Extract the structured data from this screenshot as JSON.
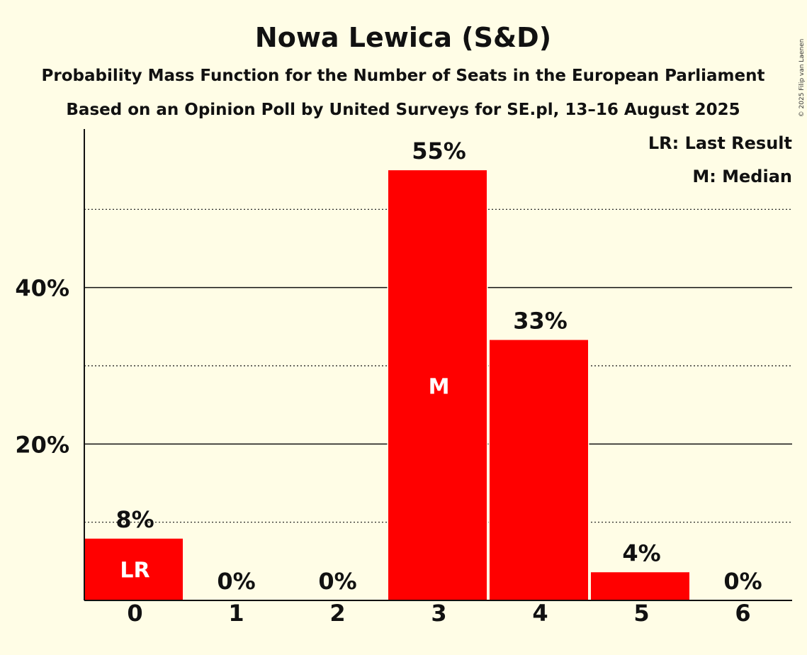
{
  "chart_data": {
    "type": "bar",
    "title": "Nowa Lewica (S&D)",
    "subtitle": "Probability Mass Function for the Number of Seats in the European Parliament",
    "subtitle2": "Based on an Opinion Poll by United Surveys for SE.pl, 13–16 August 2025",
    "categories": [
      "0",
      "1",
      "2",
      "3",
      "4",
      "5",
      "6"
    ],
    "values": [
      7.9,
      0,
      0,
      55,
      33.3,
      3.6,
      0
    ],
    "value_labels": [
      "8%",
      "0%",
      "0%",
      "55%",
      "33%",
      "4%",
      "0%"
    ],
    "ylim": [
      0,
      60
    ],
    "yticks": [
      20,
      40
    ],
    "ytick_labels": [
      "20%",
      "40%"
    ],
    "minor_gridlines": [
      10,
      30,
      50
    ],
    "bar_color": "#ff0000",
    "background": "#fffde6",
    "markers": [
      {
        "category": "0",
        "text": "LR"
      },
      {
        "category": "3",
        "text": "M"
      }
    ],
    "legend": [
      "LR: Last Result",
      "M: Median"
    ],
    "legend_position": "top-right",
    "copyright": "© 2025 Filip van Laenen"
  }
}
